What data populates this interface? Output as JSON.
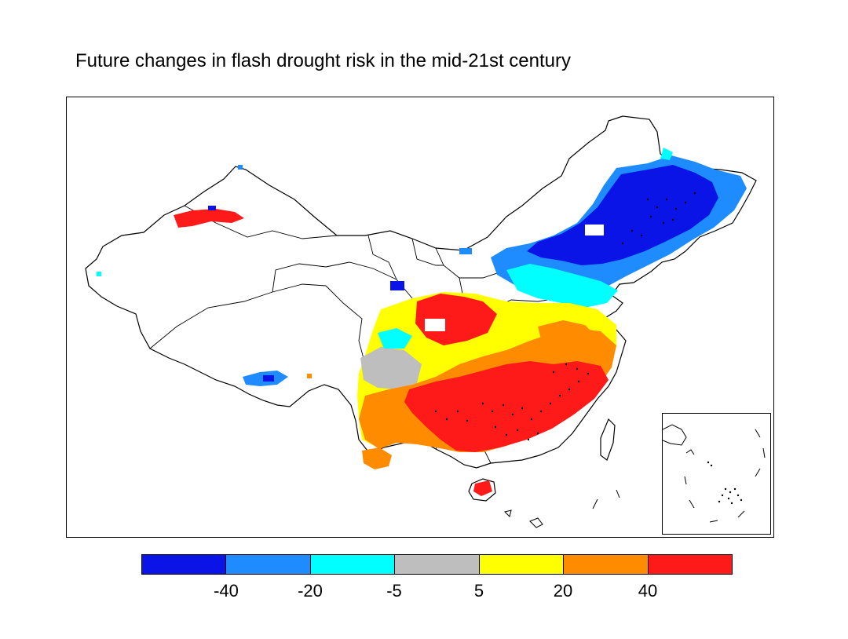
{
  "title": "Future changes in flash drought risk in the mid-21st century",
  "legend": {
    "bins": [
      {
        "name": "< -40",
        "color": "#0a14e6"
      },
      {
        "name": "-40 to -20",
        "color": "#1e8cff"
      },
      {
        "name": "-20 to -5",
        "color": "#00ffff"
      },
      {
        "name": "-5 to 5",
        "color": "#bebebe"
      },
      {
        "name": "5 to 20",
        "color": "#ffff00"
      },
      {
        "name": "20 to 40",
        "color": "#ff8c00"
      },
      {
        "name": "> 40",
        "color": "#ff1a1a"
      }
    ],
    "ticks": [
      "-40",
      "-20",
      "-5",
      "5",
      "20",
      "40"
    ]
  },
  "map": {
    "region": "China",
    "stippling": "significant change",
    "inset": "South China Sea"
  }
}
